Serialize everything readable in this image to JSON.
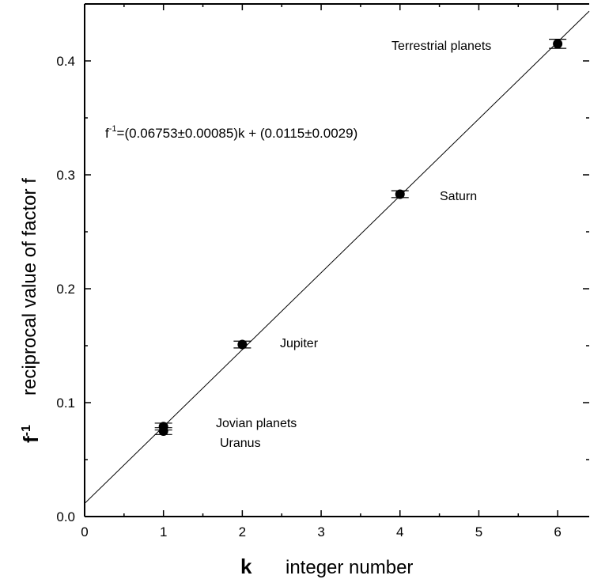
{
  "chart_data": {
    "type": "scatter",
    "xlabel_symbol": "k",
    "xlabel": "integer number",
    "ylabel_symbol": "f",
    "ylabel_symbol_exp": "-1",
    "ylabel": "reciprocal  value of factor f",
    "xlim": [
      0,
      6.4
    ],
    "ylim": [
      0,
      0.45
    ],
    "x_ticks": [
      0,
      1,
      2,
      3,
      4,
      5,
      6
    ],
    "y_ticks": [
      0.0,
      0.1,
      0.2,
      0.3,
      0.4
    ],
    "x_tick_labels": [
      "0",
      "1",
      "2",
      "3",
      "4",
      "5",
      "6"
    ],
    "y_tick_labels": [
      "0.0",
      "0.1",
      "0.2",
      "0.3",
      "0.4"
    ],
    "grid": false,
    "points": [
      {
        "x": 1,
        "y": 0.075,
        "err": 0.003
      },
      {
        "x": 1,
        "y": 0.079,
        "err": 0.003
      },
      {
        "x": 2,
        "y": 0.151,
        "err": 0.003
      },
      {
        "x": 4,
        "y": 0.283,
        "err": 0.003
      },
      {
        "x": 6,
        "y": 0.415,
        "err": 0.004
      }
    ],
    "fit": {
      "slope": 0.06753,
      "intercept": 0.0115
    },
    "equation": {
      "prefix": "f",
      "exp": "-1",
      "body": "=(0.06753±0.00085)k + (0.0115±0.0029)"
    },
    "annotations": {
      "terrestrial": "Terrestrial planets",
      "saturn": "Saturn",
      "jupiter": "Jupiter",
      "jovian": "Jovian planets",
      "uranus": "Uranus"
    }
  }
}
